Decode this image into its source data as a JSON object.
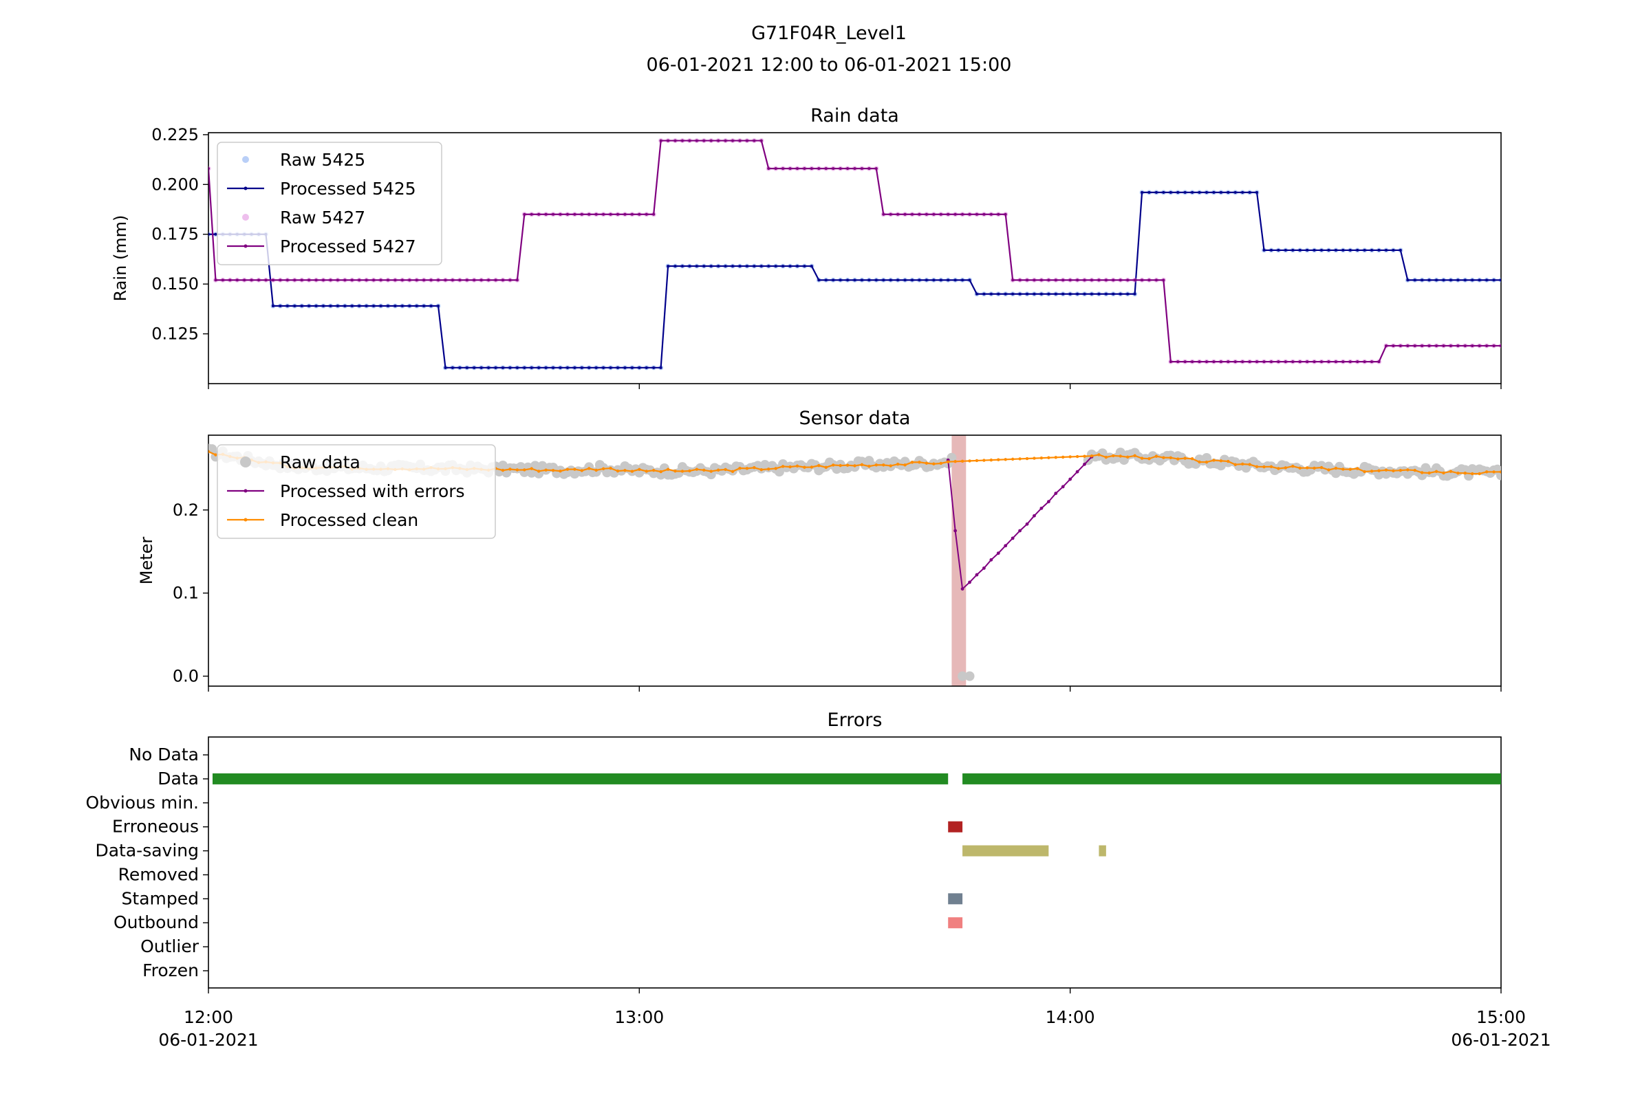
{
  "figure": {
    "title_line1": "G71F04R_Level1",
    "title_line2": "06-01-2021 12:00 to 06-01-2021 15:00"
  },
  "x_axis": {
    "range_minutes": [
      0,
      180
    ],
    "ticks": [
      {
        "minute": 0,
        "label1": "12:00",
        "label2": "06-01-2021"
      },
      {
        "minute": 60,
        "label1": "13:00",
        "label2": ""
      },
      {
        "minute": 120,
        "label1": "14:00",
        "label2": ""
      },
      {
        "minute": 180,
        "label1": "15:00",
        "label2": "06-01-2021"
      }
    ]
  },
  "chart_data": [
    {
      "type": "line",
      "title": "Rain data",
      "ylabel": "Rain (mm)",
      "ylim": [
        0.1,
        0.226
      ],
      "yticks": [
        "0.125",
        "0.150",
        "0.175",
        "0.200",
        "0.225"
      ],
      "legend_position": "upper-left",
      "series": [
        {
          "name": "Raw 5425",
          "kind": "raw",
          "color": "#6495ed"
        },
        {
          "name": "Processed 5425",
          "kind": "processed",
          "color": "#00008b",
          "steps": [
            [
              0,
              8,
              0.175
            ],
            [
              9,
              32,
              0.139
            ],
            [
              33,
              63,
              0.108
            ],
            [
              64,
              84,
              0.159
            ],
            [
              85,
              106,
              0.152
            ],
            [
              107,
              129,
              0.145
            ],
            [
              130,
              146,
              0.196
            ],
            [
              147,
              166,
              0.167
            ],
            [
              167,
              180,
              0.152
            ]
          ]
        },
        {
          "name": "Raw 5427",
          "kind": "raw",
          "color": "#da70d6"
        },
        {
          "name": "Processed 5427",
          "kind": "processed",
          "color": "#800080",
          "steps": [
            [
              0,
              0,
              0.208
            ],
            [
              1,
              43,
              0.152
            ],
            [
              44,
              62,
              0.185
            ],
            [
              63,
              77,
              0.222
            ],
            [
              78,
              93,
              0.208
            ],
            [
              94,
              111,
              0.185
            ],
            [
              112,
              133,
              0.152
            ],
            [
              134,
              163,
              0.111
            ],
            [
              164,
              180,
              0.119
            ]
          ]
        }
      ]
    },
    {
      "type": "line",
      "title": "Sensor data",
      "ylabel": "Meter",
      "ylim": [
        -0.012,
        0.29
      ],
      "yticks": [
        "0.0",
        "0.1",
        "0.2"
      ],
      "legend_position": "upper-left",
      "error_band": {
        "from": 103.5,
        "to": 105.5,
        "color": "#e6b8b8"
      },
      "series": [
        {
          "name": "Raw data",
          "kind": "raw",
          "color": "#c8c8c8",
          "gap": [
            104,
            105
          ],
          "zero_points": [
            105,
            106
          ]
        },
        {
          "name": "Processed with errors",
          "kind": "errors",
          "color": "#800080",
          "points": [
            [
              103,
              0.26
            ],
            [
              104,
              0.175
            ],
            [
              105,
              0.105
            ],
            [
              106,
              0.113
            ],
            [
              107,
              0.122
            ],
            [
              108,
              0.13
            ],
            [
              109,
              0.14
            ],
            [
              110,
              0.148
            ],
            [
              111,
              0.157
            ],
            [
              112,
              0.166
            ],
            [
              113,
              0.175
            ],
            [
              114,
              0.183
            ],
            [
              115,
              0.193
            ],
            [
              116,
              0.202
            ],
            [
              117,
              0.21
            ],
            [
              118,
              0.22
            ],
            [
              119,
              0.228
            ],
            [
              120,
              0.237
            ],
            [
              121,
              0.246
            ],
            [
              122,
              0.255
            ],
            [
              123,
              0.264
            ]
          ]
        },
        {
          "name": "Processed clean",
          "kind": "clean",
          "color": "#ff8c00",
          "keypoints": [
            [
              0,
              0.27
            ],
            [
              6,
              0.26
            ],
            [
              12,
              0.252
            ],
            [
              20,
              0.251
            ],
            [
              30,
              0.25
            ],
            [
              40,
              0.249
            ],
            [
              50,
              0.248
            ],
            [
              55,
              0.25
            ],
            [
              60,
              0.247
            ],
            [
              70,
              0.247
            ],
            [
              80,
              0.251
            ],
            [
              90,
              0.254
            ],
            [
              100,
              0.256
            ],
            [
              103,
              0.258
            ],
            [
              123,
              0.265
            ],
            [
              130,
              0.264
            ],
            [
              140,
              0.258
            ],
            [
              150,
              0.251
            ],
            [
              160,
              0.248
            ],
            [
              170,
              0.246
            ],
            [
              180,
              0.244
            ]
          ],
          "interpolated": [
            103,
            123
          ]
        }
      ]
    },
    {
      "type": "timeline",
      "title": "Errors",
      "categories": [
        "No Data",
        "Data",
        "Obvious min.",
        "Erroneous",
        "Data-saving",
        "Removed",
        "Stamped",
        "Outbound",
        "Outlier",
        "Frozen"
      ],
      "bars": [
        {
          "category": "Data",
          "color": "#228b22",
          "segments": [
            [
              0,
              103
            ],
            [
              105,
              180
            ]
          ]
        },
        {
          "category": "Erroneous",
          "color": "#b22222",
          "segments": [
            [
              103,
              105
            ]
          ]
        },
        {
          "category": "Data-saving",
          "color": "#bdb76b",
          "segments": [
            [
              105,
              117
            ],
            [
              124,
              125
            ]
          ]
        },
        {
          "category": "Stamped",
          "color": "#708090",
          "segments": [
            [
              103,
              105
            ]
          ]
        },
        {
          "category": "Outbound",
          "color": "#f08080",
          "segments": [
            [
              103,
              105
            ]
          ]
        }
      ]
    }
  ]
}
